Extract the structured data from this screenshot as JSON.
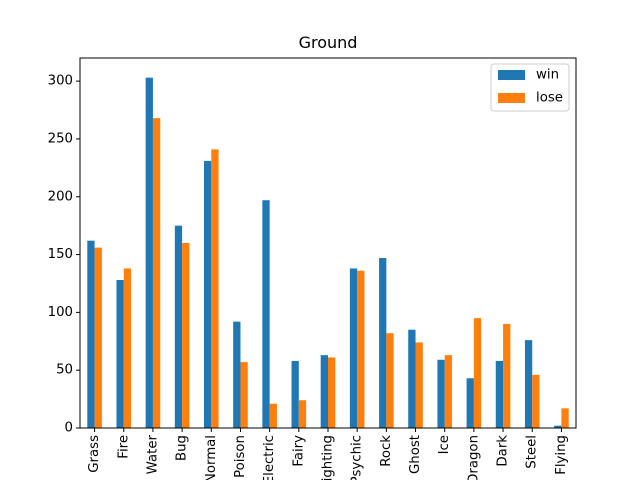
{
  "chart_data": {
    "type": "bar",
    "title": "Ground",
    "xlabel": "",
    "ylabel": "",
    "ylim": [
      0,
      320
    ],
    "yticks": [
      0,
      50,
      100,
      150,
      200,
      250,
      300
    ],
    "ytick_labels": [
      "0",
      "50",
      "100",
      "150",
      "200",
      "250",
      "300"
    ],
    "grid": false,
    "legend_position": "top-right",
    "categories": [
      "Grass",
      "Fire",
      "Water",
      "Bug",
      "Normal",
      "Poison",
      "Electric",
      "Fairy",
      "Fighting",
      "Psychic",
      "Rock",
      "Ghost",
      "Ice",
      "Dragon",
      "Dark",
      "Steel",
      "Flying"
    ],
    "series": [
      {
        "name": "win",
        "color": "#1f77b4",
        "values": [
          162,
          128,
          303,
          175,
          231,
          92,
          197,
          58,
          63,
          138,
          147,
          85,
          59,
          43,
          58,
          76,
          2
        ]
      },
      {
        "name": "lose",
        "color": "#ff7f0e",
        "values": [
          156,
          138,
          268,
          160,
          241,
          57,
          21,
          24,
          61,
          136,
          82,
          74,
          63,
          95,
          90,
          46,
          17
        ]
      }
    ]
  }
}
